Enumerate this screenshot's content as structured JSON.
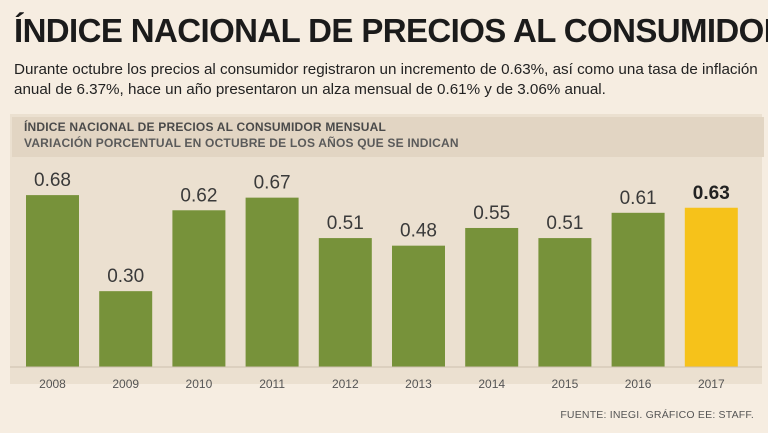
{
  "headline": "ÍNDICE NACIONAL DE PRECIOS AL CONSUMIDOR",
  "lede": "Durante octubre los precios al consumidor registraron un incremento de 0.63%, así como una tasa de inflación anual de 6.37%, hace un año presentaron un alza mensual de 0.61% y de 3.06% anual.",
  "source": "FUENTE: INEGI. GRÁFICO EE: STAFF.",
  "colors": {
    "bar": "#77923a",
    "highlight": "#f6c21a",
    "background": "#f6ede1"
  },
  "chart_data": {
    "type": "bar",
    "title": "ÍNDICE NACIONAL DE PRECIOS AL CONSUMIDOR  MENSUAL",
    "subtitle": "VARIACIÓN PORCENTUAL EN OCTUBRE DE LOS AÑOS QUE SE INDICAN",
    "categories": [
      "2008",
      "2009",
      "2010",
      "2011",
      "2012",
      "2013",
      "2014",
      "2015",
      "2016",
      "2017"
    ],
    "values": [
      0.68,
      0.3,
      0.62,
      0.67,
      0.51,
      0.48,
      0.55,
      0.51,
      0.61,
      0.63
    ],
    "data_labels": [
      "0.68",
      "0.30",
      "0.62",
      "0.67",
      "0.51",
      "0.48",
      "0.55",
      "0.51",
      "0.61",
      "0.63"
    ],
    "highlight_category": "2017",
    "ylim": [
      0,
      0.72
    ],
    "grid": false,
    "legend": "none"
  }
}
